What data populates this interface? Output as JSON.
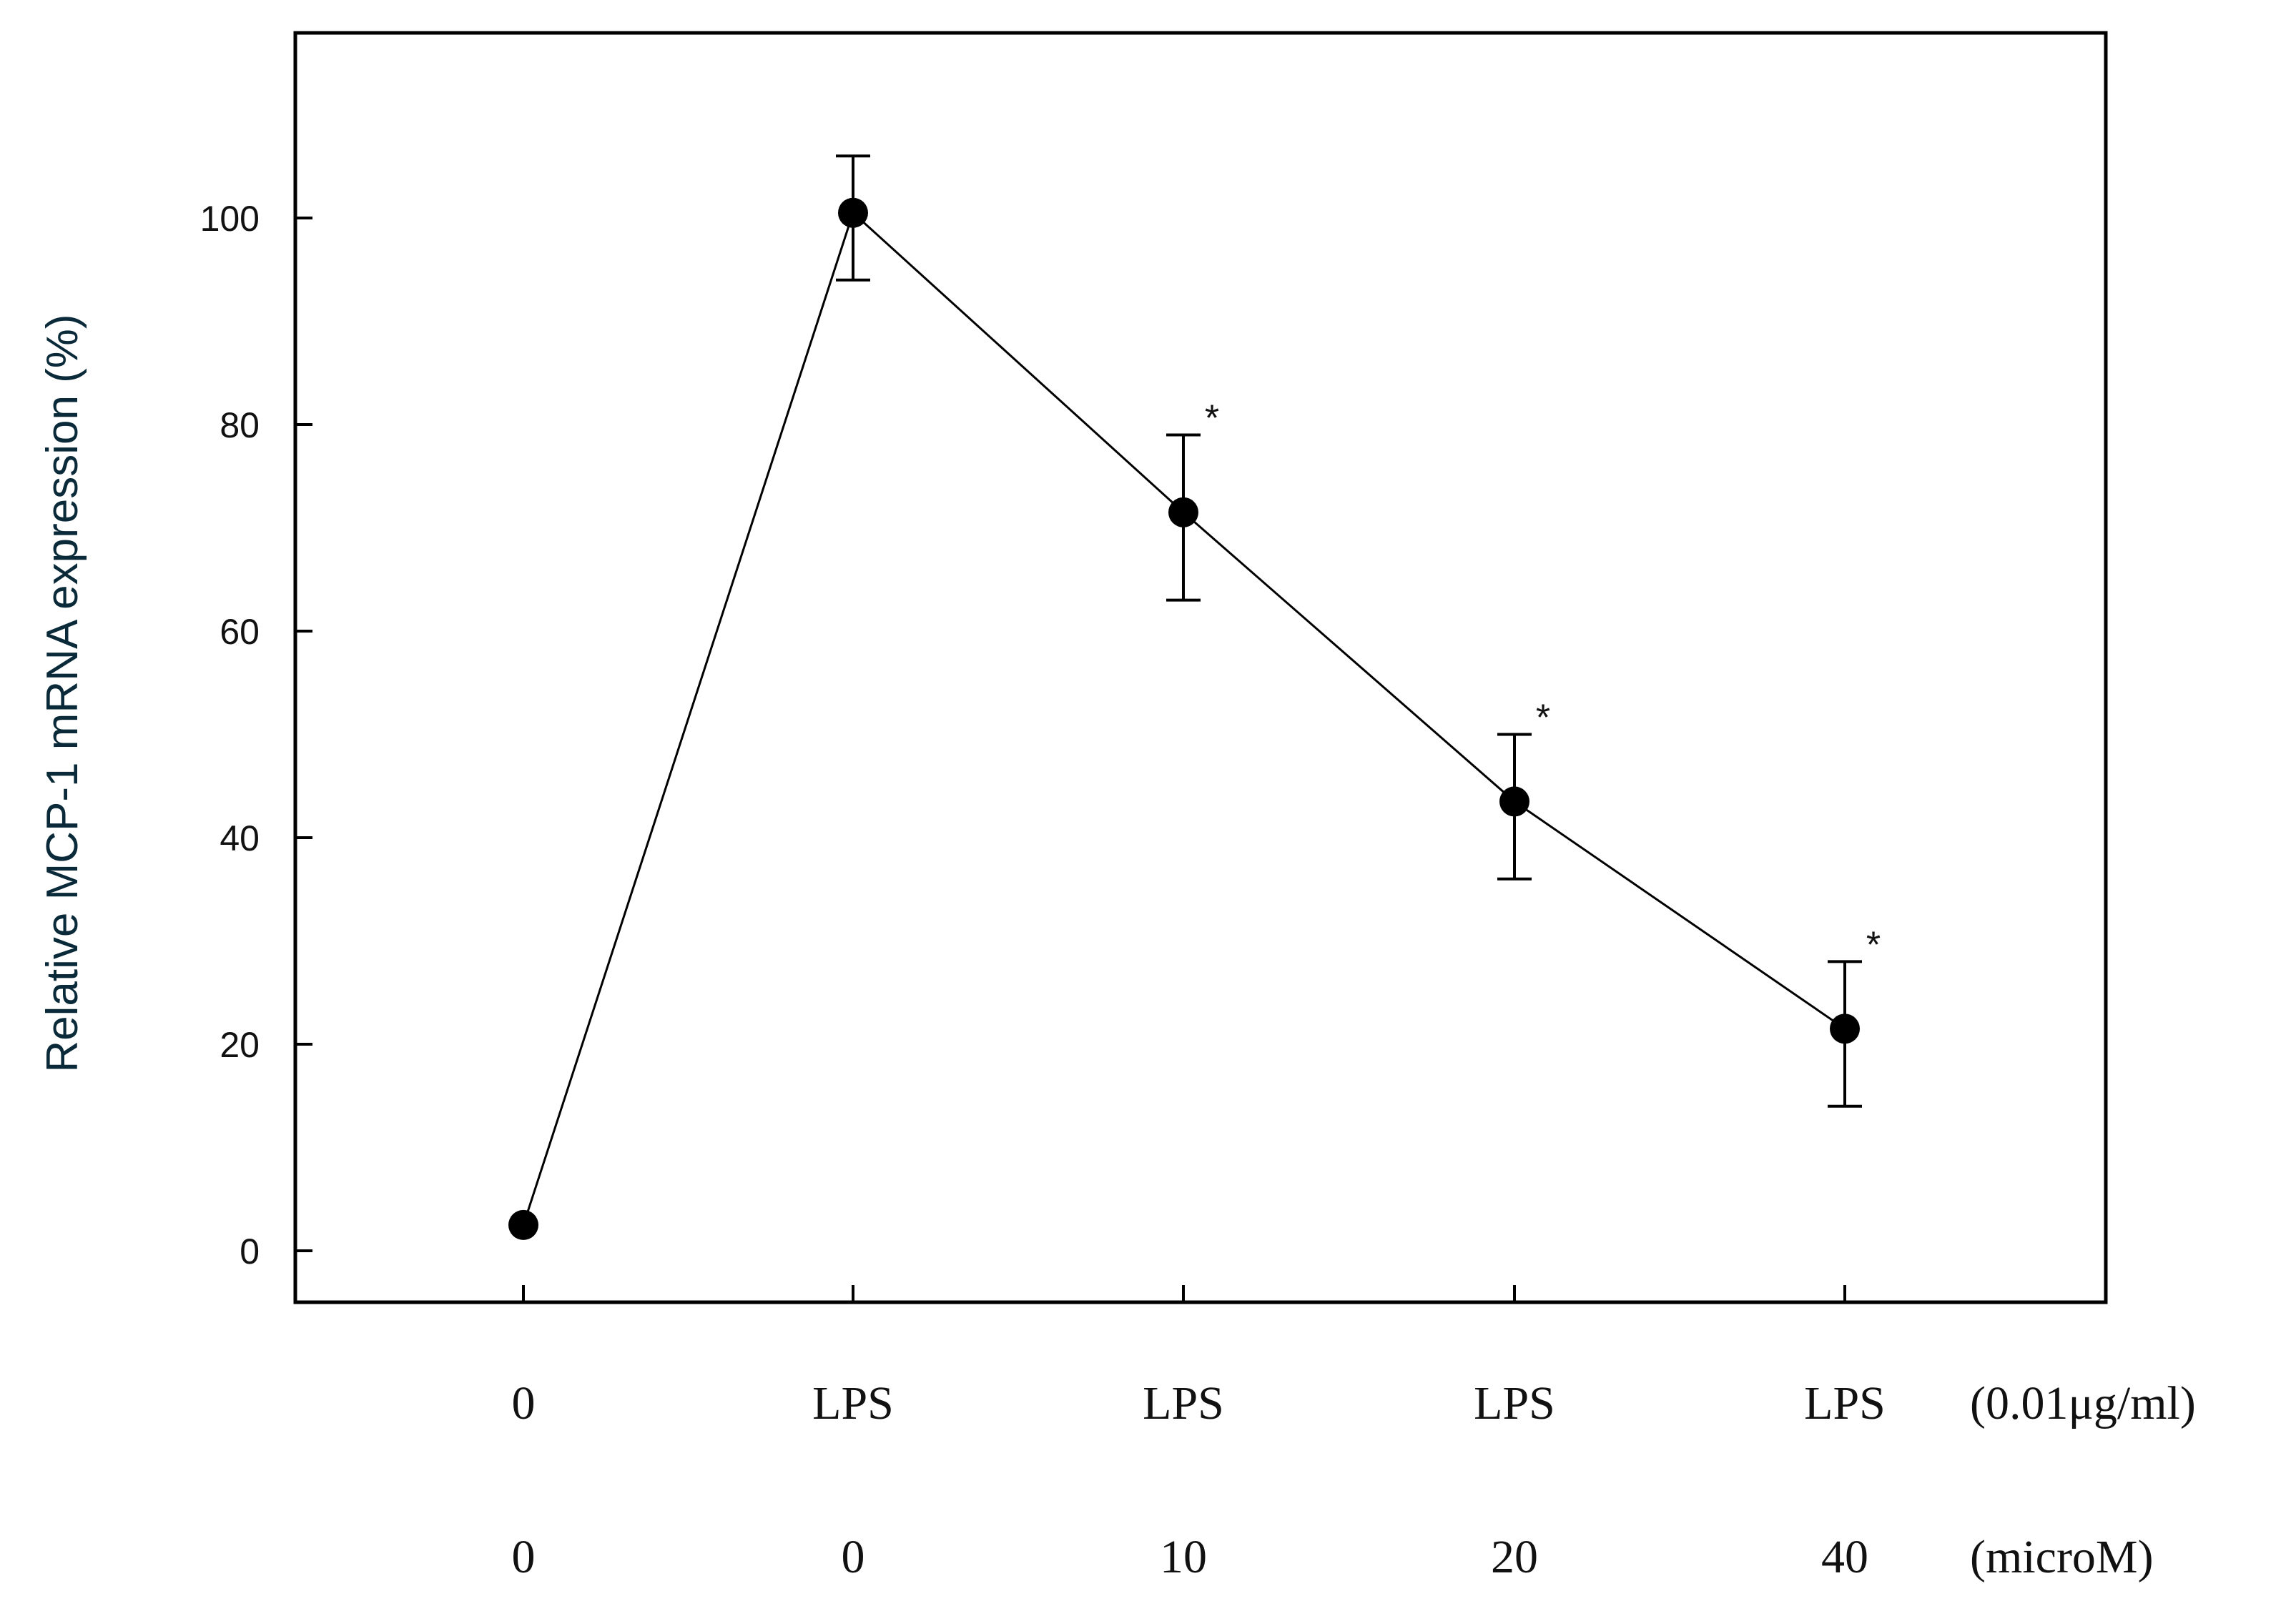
{
  "chart_data": {
    "type": "line",
    "ylabel": "Relative MCP-1 mRNA expression (%)",
    "xlabel": "",
    "ylim": [
      -5,
      118
    ],
    "yticks": [
      0,
      20,
      40,
      60,
      80,
      100
    ],
    "grid": false,
    "categories_row1": [
      "0",
      "LPS",
      "LPS",
      "LPS",
      "LPS"
    ],
    "row1_unit": "(0.01μg/ml)",
    "categories_row2": [
      "0",
      "0",
      "10",
      "20",
      "40"
    ],
    "row2_unit": "(microM)",
    "series": [
      {
        "values": [
          2.5,
          100.5,
          71.5,
          43.5,
          21.5
        ],
        "error_high": [
          2.5,
          106,
          79,
          50,
          28
        ],
        "error_low": [
          2.5,
          94,
          63,
          36,
          14
        ],
        "significance": [
          "",
          "",
          "*",
          "*",
          "*"
        ]
      }
    ]
  }
}
